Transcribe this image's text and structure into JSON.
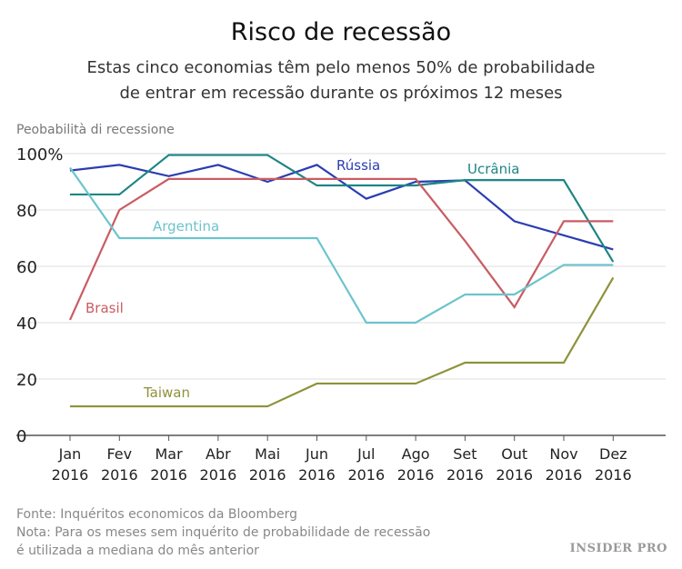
{
  "chart_data": {
    "type": "line",
    "title": "Risco de recessão",
    "subtitle": [
      "Estas cinco economias têm pelo menos 50% de probabilidade",
      "de entrar em recessão durante os próximos 12 meses"
    ],
    "ylabel": "Peobabilità di recessione",
    "ylim": [
      0,
      100
    ],
    "yticks": [
      "0",
      "20",
      "40",
      "60",
      "80",
      "100%"
    ],
    "grid": true,
    "categories": [
      [
        "Jan",
        "2016"
      ],
      [
        "Fev",
        "2016"
      ],
      [
        "Mar",
        "2016"
      ],
      [
        "Abr",
        "2016"
      ],
      [
        "Mai",
        "2016"
      ],
      [
        "Jun",
        "2016"
      ],
      [
        "Jul",
        "2016"
      ],
      [
        "Ago",
        "2016"
      ],
      [
        "Set",
        "2016"
      ],
      [
        "Out",
        "2016"
      ],
      [
        "Nov",
        "2016"
      ],
      [
        "Dez",
        "2016"
      ]
    ],
    "series": [
      {
        "name": "Rússia",
        "color": "#2a3eb1",
        "values": [
          94,
          96,
          92,
          96,
          90,
          96,
          84,
          90,
          90.5,
          76,
          71,
          66
        ]
      },
      {
        "name": "Ucrânia",
        "color": "#1f8585",
        "values": [
          85.5,
          85.5,
          99.5,
          99.5,
          99.5,
          88.7,
          88.7,
          88.7,
          90.6,
          90.6,
          90.6,
          61.6
        ]
      },
      {
        "name": "Brasil",
        "color": "#c95c63",
        "values": [
          41,
          80,
          91,
          91,
          91,
          91,
          91,
          91,
          69,
          45.5,
          76,
          76
        ]
      },
      {
        "name": "Argentina",
        "color": "#6cc4cc",
        "values": [
          95,
          70,
          70,
          70,
          70,
          70,
          40,
          40,
          50,
          50,
          60.5,
          60.5
        ]
      },
      {
        "name": "Taiwan",
        "color": "#8e923a",
        "values": [
          10.3,
          10.3,
          10.3,
          10.3,
          10.3,
          18.4,
          18.4,
          18.4,
          25.8,
          25.8,
          25.8,
          56
        ]
      }
    ]
  },
  "footer": {
    "source": "Fonte: Inquéritos economicos da Bloomberg",
    "note1": "Nota: Para os meses sem inquérito de probabilidade de recessão",
    "note2": "é utilizada a mediana do mês anterior",
    "logo": "INSIDER PRO"
  }
}
